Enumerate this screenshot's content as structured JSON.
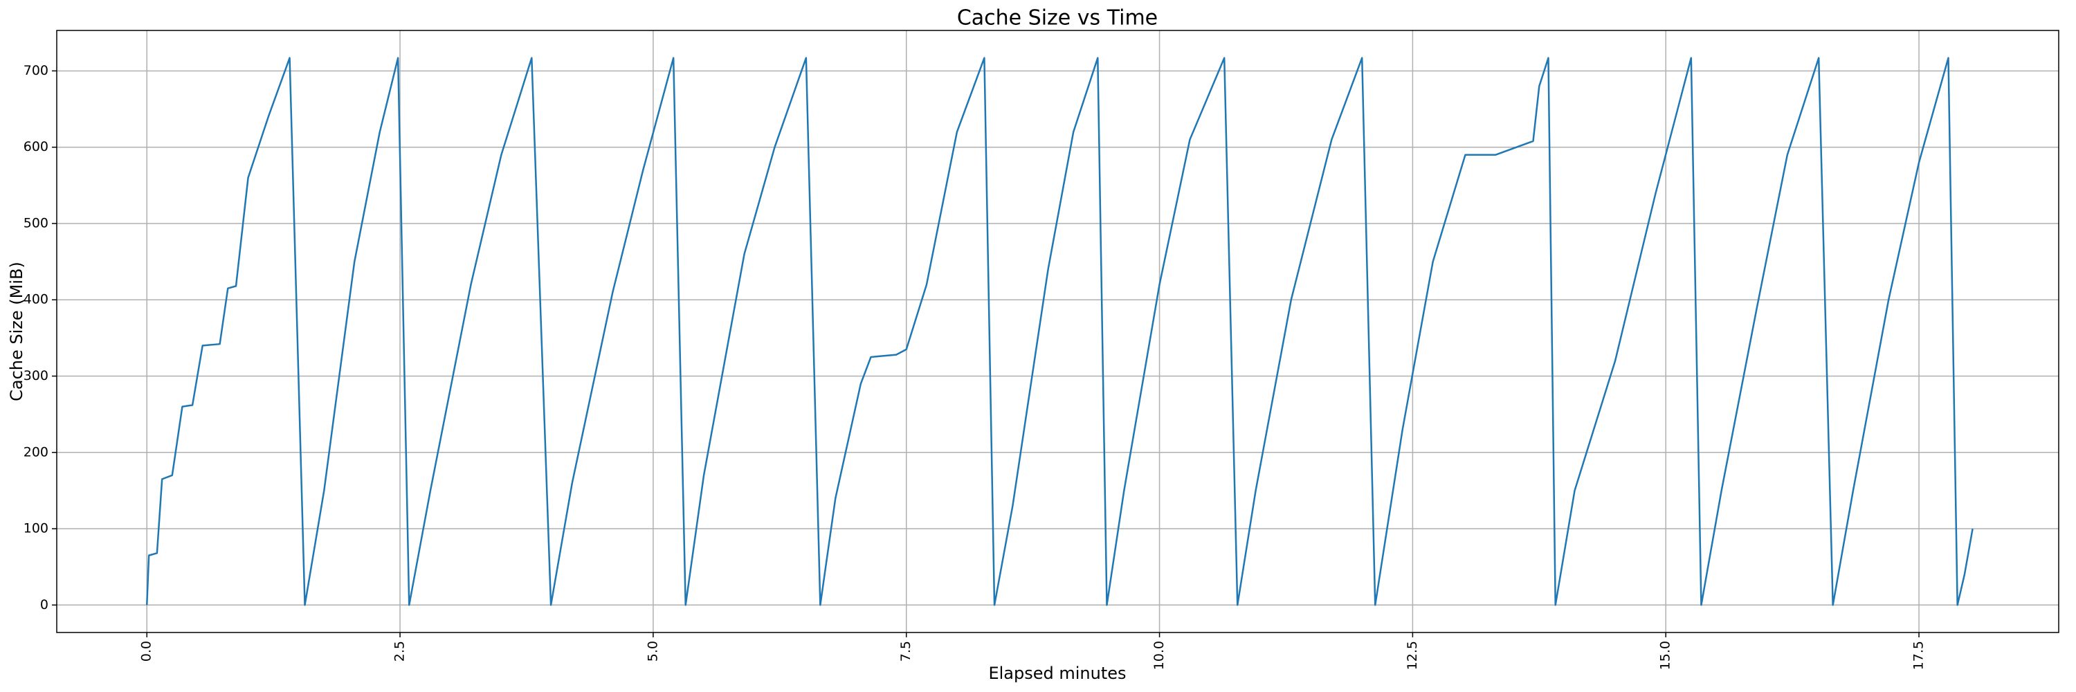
{
  "chart_data": {
    "type": "line",
    "title": "Cache Size vs Time",
    "xlabel": "Elapsed minutes",
    "ylabel": "Cache Size (MiB)",
    "grid": true,
    "xlim": [
      -0.89,
      18.88
    ],
    "ylim": [
      -36,
      753
    ],
    "xticks": [
      {
        "value": 0,
        "label": "0.0"
      },
      2.5,
      {
        "value": 5,
        "label": "5.0"
      },
      7.5,
      {
        "value": 10,
        "label": "10.0"
      },
      12.5,
      {
        "value": 15,
        "label": "15.0"
      },
      17.5
    ],
    "yticks": [
      0,
      100,
      200,
      300,
      400,
      500,
      600,
      700
    ],
    "x": [
      0.0,
      0.02,
      0.1,
      0.15,
      0.25,
      0.35,
      0.45,
      0.55,
      0.72,
      0.8,
      0.88,
      1.0,
      1.2,
      1.41,
      1.56,
      1.75,
      2.05,
      2.3,
      2.48,
      2.59,
      2.8,
      3.2,
      3.5,
      3.8,
      3.99,
      4.2,
      4.6,
      4.9,
      5.2,
      5.32,
      5.5,
      5.9,
      6.2,
      6.51,
      6.65,
      6.8,
      7.05,
      7.15,
      7.4,
      7.5,
      7.7,
      8.0,
      8.27,
      8.37,
      8.55,
      8.9,
      9.15,
      9.39,
      9.48,
      9.65,
      10.0,
      10.3,
      10.64,
      10.77,
      10.95,
      11.3,
      11.7,
      12.0,
      12.13,
      12.4,
      12.7,
      13.02,
      13.32,
      13.69,
      13.75,
      13.84,
      13.91,
      14.1,
      14.5,
      14.9,
      15.25,
      15.35,
      15.55,
      15.9,
      16.2,
      16.51,
      16.65,
      16.85,
      17.2,
      17.5,
      17.79,
      17.88,
      17.95,
      18.03
    ],
    "series": [
      {
        "color": "#1f77b4",
        "values": [
          0,
          65,
          68,
          165,
          170,
          260,
          262,
          340,
          342,
          415,
          418,
          560,
          640,
          717,
          0,
          150,
          450,
          620,
          717,
          0,
          150,
          420,
          590,
          717,
          0,
          160,
          410,
          570,
          717,
          0,
          170,
          460,
          600,
          717,
          0,
          140,
          290,
          325,
          328,
          335,
          420,
          620,
          717,
          0,
          130,
          440,
          620,
          717,
          0,
          150,
          420,
          610,
          717,
          0,
          150,
          400,
          610,
          717,
          0,
          230,
          450,
          590,
          590,
          608,
          680,
          717,
          0,
          150,
          320,
          540,
          717,
          0,
          150,
          390,
          590,
          717,
          0,
          150,
          400,
          580,
          717,
          0,
          40,
          100
        ]
      }
    ]
  }
}
